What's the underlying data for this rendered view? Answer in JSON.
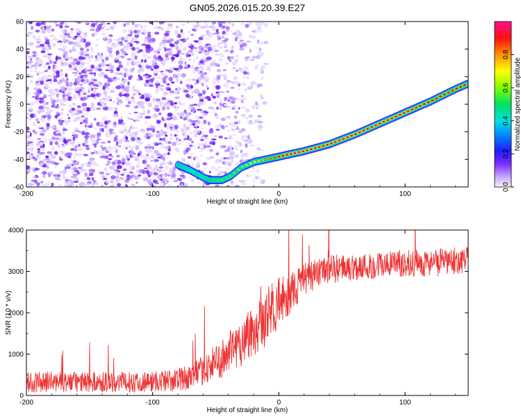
{
  "chart_data": [
    {
      "type": "heatmap",
      "title": "GN05.2026.015.20.39.E27",
      "xlabel": "Height of straight line (km)",
      "ylabel": "Frequency (Hz)",
      "xlim": [
        -200,
        150
      ],
      "ylim": [
        -60,
        60
      ],
      "xticks": [
        -200,
        -100,
        0,
        100
      ],
      "yticks": [
        -60,
        -40,
        -20,
        0,
        20,
        40,
        60
      ],
      "colorbar": {
        "label": "Normalized spectral amplitude",
        "range": [
          0.0,
          1.0
        ],
        "ticks": [
          "0.0",
          "0.2",
          "0.4",
          "0.6",
          "0.8"
        ]
      },
      "noise_region": {
        "x_from": -200,
        "x_to": -30,
        "note": "scattered low-amplitude purple noise"
      },
      "ridge": {
        "x": [
          -80,
          -70,
          -60,
          -55,
          -45,
          -38,
          -30,
          -20,
          -10,
          0,
          10,
          20,
          40,
          60,
          80,
          100,
          120,
          140,
          150
        ],
        "y": [
          -44,
          -48,
          -53,
          -55,
          -55,
          -52,
          -46,
          -42,
          -40,
          -38,
          -36,
          -34,
          -29,
          -22,
          -14,
          -6,
          2,
          11,
          15
        ],
        "amplitude": [
          0.35,
          0.4,
          0.45,
          0.5,
          0.55,
          0.55,
          0.6,
          0.7,
          0.8,
          0.9,
          0.95,
          0.95,
          0.95,
          0.95,
          0.95,
          0.95,
          0.9,
          0.9,
          0.9
        ]
      }
    },
    {
      "type": "line",
      "xlabel": "Height of straight line (km)",
      "ylabel": "SNR (10 * v/v)",
      "xlim": [
        -200,
        150
      ],
      "ylim": [
        0,
        4000
      ],
      "xticks": [
        -200,
        -100,
        0,
        100
      ],
      "yticks": [
        0,
        1000,
        2000,
        3000,
        4000
      ],
      "series": [
        {
          "name": "SNR",
          "color": "#ee3333",
          "x": [
            -200,
            -180,
            -160,
            -140,
            -120,
            -100,
            -90,
            -80,
            -70,
            -60,
            -50,
            -40,
            -30,
            -20,
            -10,
            0,
            10,
            20,
            30,
            40,
            60,
            80,
            100,
            120,
            140,
            150
          ],
          "y": [
            320,
            330,
            320,
            330,
            320,
            340,
            350,
            380,
            450,
            600,
            800,
            1000,
            1300,
            1600,
            1900,
            2200,
            2500,
            2800,
            2950,
            3050,
            3100,
            3150,
            3200,
            3200,
            3250,
            3300
          ],
          "noise_amplitude": [
            250,
            250,
            250,
            250,
            250,
            260,
            270,
            280,
            300,
            350,
            450,
            500,
            600,
            700,
            700,
            650,
            500,
            400,
            350,
            350,
            330,
            330,
            330,
            330,
            330,
            330
          ]
        }
      ]
    }
  ]
}
